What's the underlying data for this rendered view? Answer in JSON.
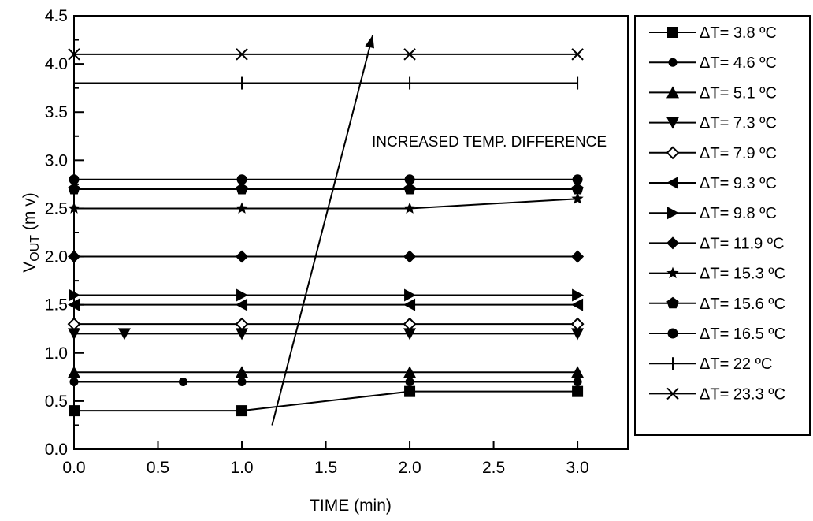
{
  "chart_data": {
    "type": "line",
    "title": "",
    "xlabel": "TIME (min)",
    "ylabel": "VOUT (m v)",
    "ylabel_main": "V",
    "ylabel_sub": "OUT",
    "ylabel_unit": " (m v)",
    "xlim": [
      0,
      3.3
    ],
    "ylim": [
      0,
      4.5
    ],
    "x_ticks": [
      0.0,
      0.5,
      1.0,
      1.5,
      2.0,
      2.5,
      3.0
    ],
    "x_tick_labels": [
      "0.0",
      "0.5",
      "1.0",
      "1.5",
      "2.0",
      "2.5",
      "3.0"
    ],
    "y_ticks": [
      0.0,
      0.5,
      1.0,
      1.5,
      2.0,
      2.5,
      3.0,
      3.5,
      4.0,
      4.5
    ],
    "y_tick_labels": [
      "0.0",
      "0.5",
      "1.0",
      "1.5",
      "2.0",
      "2.5",
      "3.0",
      "3.5",
      "4.0",
      "4.5"
    ],
    "grid": false,
    "legend_position": "right, outside plot",
    "annotation": {
      "text": "INCREASED TEMP. DIFFERENCE",
      "arrow_from": [
        1.18,
        0.25
      ],
      "arrow_to": [
        1.78,
        4.3
      ]
    },
    "series": [
      {
        "name": "ΔT= 3.8 ºC",
        "marker": "square",
        "x": [
          0,
          1,
          2,
          3
        ],
        "values": [
          0.4,
          0.4,
          0.6,
          0.6
        ]
      },
      {
        "name": "ΔT= 4.6 ºC",
        "marker": "circle-small",
        "x": [
          0,
          0.65,
          1,
          2,
          3
        ],
        "values": [
          0.7,
          0.7,
          0.7,
          0.7,
          0.7
        ]
      },
      {
        "name": "ΔT= 5.1 ºC",
        "marker": "triangle-up",
        "x": [
          0,
          1,
          2,
          3
        ],
        "values": [
          0.8,
          0.8,
          0.8,
          0.8
        ]
      },
      {
        "name": "ΔT= 7.3 ºC",
        "marker": "triangle-down",
        "x": [
          0,
          0.3,
          1,
          2,
          3
        ],
        "values": [
          1.2,
          1.2,
          1.2,
          1.2,
          1.2
        ]
      },
      {
        "name": "ΔT= 7.9 ºC",
        "marker": "diamond-open",
        "x": [
          0,
          1,
          2,
          3
        ],
        "values": [
          1.3,
          1.3,
          1.3,
          1.3
        ]
      },
      {
        "name": "ΔT= 9.3 ºC",
        "marker": "triangle-left",
        "x": [
          0,
          1,
          2,
          3
        ],
        "values": [
          1.5,
          1.5,
          1.5,
          1.5
        ]
      },
      {
        "name": "ΔT= 9.8 ºC",
        "marker": "triangle-right",
        "x": [
          0,
          1,
          2,
          3
        ],
        "values": [
          1.6,
          1.6,
          1.6,
          1.6
        ]
      },
      {
        "name": "ΔT= 11.9 ºC",
        "marker": "diamond",
        "x": [
          0,
          1,
          2,
          3
        ],
        "values": [
          2.0,
          2.0,
          2.0,
          2.0
        ]
      },
      {
        "name": "ΔT= 15.3 ºC",
        "marker": "star",
        "x": [
          0,
          1,
          2,
          3
        ],
        "values": [
          2.5,
          2.5,
          2.5,
          2.6
        ]
      },
      {
        "name": "ΔT= 15.6 ºC",
        "marker": "pentagon",
        "x": [
          0,
          1,
          2,
          3
        ],
        "values": [
          2.7,
          2.7,
          2.7,
          2.7
        ]
      },
      {
        "name": "ΔT= 16.5 ºC",
        "marker": "circle",
        "x": [
          0,
          1,
          2,
          3
        ],
        "values": [
          2.8,
          2.8,
          2.8,
          2.8
        ]
      },
      {
        "name": "ΔT= 22 ºC",
        "marker": "plus",
        "x": [
          0,
          1,
          2,
          3
        ],
        "values": [
          3.8,
          3.8,
          3.8,
          3.8
        ]
      },
      {
        "name": "ΔT= 23.3 ºC",
        "marker": "cross",
        "x": [
          0,
          1,
          2,
          3
        ],
        "values": [
          4.1,
          4.1,
          4.1,
          4.1
        ]
      }
    ]
  }
}
